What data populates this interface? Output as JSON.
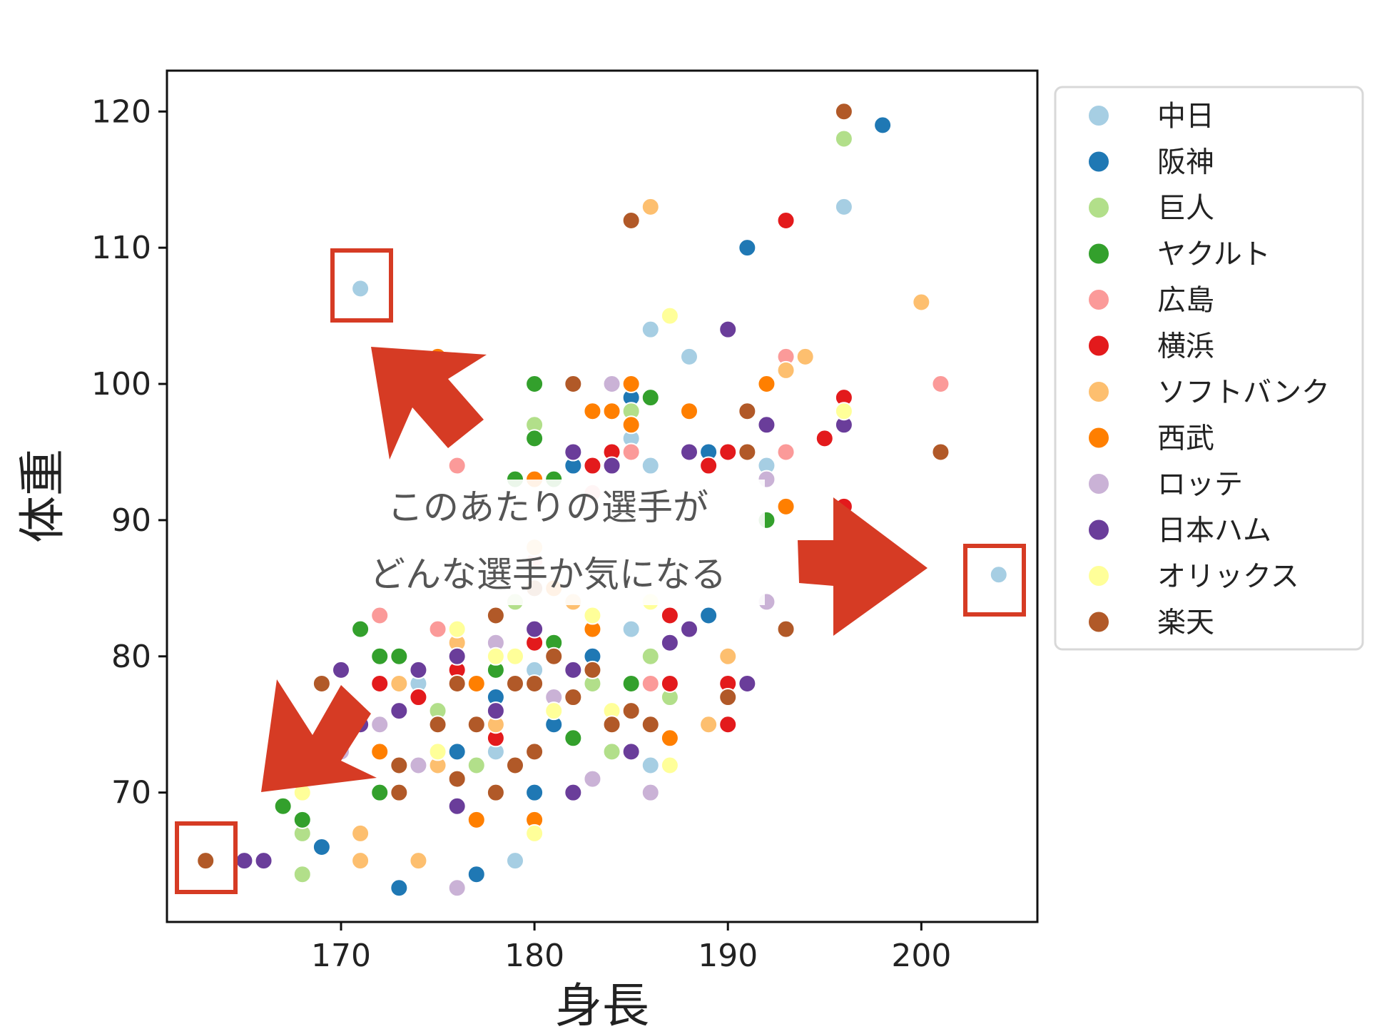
{
  "chart_data": {
    "type": "scatter",
    "xlabel": "身長",
    "ylabel": "体重",
    "xlim": [
      161,
      206
    ],
    "ylim": [
      60.5,
      123
    ],
    "xticks": [
      170,
      180,
      190,
      200
    ],
    "yticks": [
      70,
      80,
      90,
      100,
      110,
      120
    ],
    "grid": false,
    "legend_position": "outside-right",
    "series": [
      {
        "name": "中日",
        "color": "#a6cee3",
        "points": [
          [
            171,
            107
          ],
          [
            196,
            113
          ],
          [
            186,
            104
          ],
          [
            188,
            102
          ],
          [
            204,
            86
          ],
          [
            179,
            65
          ],
          [
            185,
            96
          ],
          [
            186,
            94
          ],
          [
            192,
            94
          ],
          [
            182,
            70
          ],
          [
            186,
            72
          ],
          [
            178,
            73
          ],
          [
            174,
            78
          ],
          [
            185,
            82
          ],
          [
            180,
            79
          ]
        ]
      },
      {
        "name": "阪神",
        "color": "#1f78b4",
        "points": [
          [
            198,
            119
          ],
          [
            191,
            110
          ],
          [
            189,
            95
          ],
          [
            189,
            83
          ],
          [
            169,
            66
          ],
          [
            173,
            63
          ],
          [
            177,
            64
          ],
          [
            180,
            70
          ],
          [
            182,
            94
          ],
          [
            185,
            99
          ],
          [
            176,
            73
          ],
          [
            183,
            80
          ],
          [
            178,
            77
          ],
          [
            181,
            75
          ]
        ]
      },
      {
        "name": "巨人",
        "color": "#b2df8a",
        "points": [
          [
            196,
            118
          ],
          [
            185,
            98
          ],
          [
            180,
            97
          ],
          [
            168,
            67
          ],
          [
            168,
            64
          ],
          [
            184,
            73
          ],
          [
            187,
            77
          ],
          [
            186,
            80
          ],
          [
            177,
            72
          ],
          [
            179,
            84
          ],
          [
            183,
            78
          ],
          [
            175,
            76
          ]
        ]
      },
      {
        "name": "ヤクルト",
        "color": "#33a02c",
        "points": [
          [
            180,
            100
          ],
          [
            186,
            99
          ],
          [
            180,
            96
          ],
          [
            179,
            93
          ],
          [
            181,
            93
          ],
          [
            192,
            90
          ],
          [
            171,
            82
          ],
          [
            172,
            80
          ],
          [
            173,
            80
          ],
          [
            172,
            70
          ],
          [
            167,
            69
          ],
          [
            168,
            68
          ],
          [
            185,
            78
          ],
          [
            182,
            74
          ],
          [
            178,
            79
          ],
          [
            174,
            77
          ],
          [
            181,
            81
          ]
        ]
      },
      {
        "name": "広島",
        "color": "#fb9a99",
        "points": [
          [
            201,
            100
          ],
          [
            193,
            102
          ],
          [
            193,
            95
          ],
          [
            176,
            94
          ],
          [
            182,
            95
          ],
          [
            172,
            83
          ],
          [
            186,
            78
          ],
          [
            185,
            95
          ],
          [
            183,
            92
          ],
          [
            178,
            76
          ],
          [
            175,
            82
          ],
          [
            180,
            87
          ]
        ]
      },
      {
        "name": "横浜",
        "color": "#e31a1c",
        "points": [
          [
            193,
            112
          ],
          [
            196,
            99
          ],
          [
            196,
            91
          ],
          [
            195,
            96
          ],
          [
            190,
            95
          ],
          [
            189,
            94
          ],
          [
            191,
            78
          ],
          [
            190,
            78
          ],
          [
            190,
            75
          ],
          [
            187,
            78
          ],
          [
            184,
            95
          ],
          [
            183,
            94
          ],
          [
            172,
            78
          ],
          [
            174,
            77
          ],
          [
            176,
            79
          ],
          [
            180,
            81
          ],
          [
            178,
            74
          ],
          [
            187,
            83
          ]
        ]
      },
      {
        "name": "ソフトバンク",
        "color": "#fdbf6f",
        "points": [
          [
            186,
            113
          ],
          [
            200,
            106
          ],
          [
            194,
            102
          ],
          [
            193,
            101
          ],
          [
            189,
            75
          ],
          [
            187,
            72
          ],
          [
            190,
            80
          ],
          [
            171,
            67
          ],
          [
            171,
            65
          ],
          [
            174,
            65
          ],
          [
            180,
            88
          ],
          [
            178,
            75
          ],
          [
            176,
            81
          ],
          [
            182,
            84
          ],
          [
            175,
            72
          ],
          [
            173,
            78
          ]
        ]
      },
      {
        "name": "西武",
        "color": "#ff7f00",
        "points": [
          [
            175,
            102
          ],
          [
            185,
            100
          ],
          [
            184,
            98
          ],
          [
            183,
            98
          ],
          [
            185,
            97
          ],
          [
            188,
            98
          ],
          [
            192,
            100
          ],
          [
            193,
            91
          ],
          [
            180,
            93
          ],
          [
            187,
            74
          ],
          [
            177,
            68
          ],
          [
            180,
            68
          ],
          [
            172,
            73
          ],
          [
            183,
            82
          ],
          [
            177,
            78
          ],
          [
            181,
            85
          ]
        ]
      },
      {
        "name": "ロッテ",
        "color": "#cab2d6",
        "points": [
          [
            184,
            100
          ],
          [
            192,
            93
          ],
          [
            192,
            84
          ],
          [
            170,
            73
          ],
          [
            172,
            75
          ],
          [
            176,
            63
          ],
          [
            183,
            71
          ],
          [
            186,
            70
          ],
          [
            178,
            81
          ],
          [
            174,
            72
          ],
          [
            181,
            77
          ]
        ]
      },
      {
        "name": "日本ハム",
        "color": "#6a3d9a",
        "points": [
          [
            190,
            104
          ],
          [
            192,
            97
          ],
          [
            196,
            97
          ],
          [
            184,
            94
          ],
          [
            188,
            95
          ],
          [
            182,
            95
          ],
          [
            191,
            78
          ],
          [
            188,
            82
          ],
          [
            187,
            81
          ],
          [
            170,
            79
          ],
          [
            171,
            75
          ],
          [
            165,
            65
          ],
          [
            166,
            65
          ],
          [
            176,
            69
          ],
          [
            182,
            70
          ],
          [
            185,
            73
          ],
          [
            176,
            80
          ],
          [
            178,
            76
          ],
          [
            180,
            82
          ],
          [
            182,
            79
          ],
          [
            174,
            79
          ],
          [
            173,
            76
          ]
        ]
      },
      {
        "name": "オリックス",
        "color": "#ffff99",
        "points": [
          [
            187,
            105
          ],
          [
            196,
            98
          ],
          [
            180,
            67
          ],
          [
            187,
            72
          ],
          [
            186,
            84
          ],
          [
            183,
            83
          ],
          [
            176,
            82
          ],
          [
            178,
            80
          ],
          [
            181,
            76
          ],
          [
            175,
            73
          ],
          [
            179,
            80
          ],
          [
            184,
            76
          ],
          [
            168,
            70
          ]
        ]
      },
      {
        "name": "楽天",
        "color": "#b15928",
        "points": [
          [
            196,
            120
          ],
          [
            185,
            112
          ],
          [
            182,
            100
          ],
          [
            191,
            98
          ],
          [
            191,
            95
          ],
          [
            201,
            95
          ],
          [
            193,
            82
          ],
          [
            190,
            77
          ],
          [
            186,
            75
          ],
          [
            185,
            76
          ],
          [
            163,
            65
          ],
          [
            169,
            78
          ],
          [
            173,
            72
          ],
          [
            173,
            70
          ],
          [
            176,
            71
          ],
          [
            178,
            70
          ],
          [
            179,
            72
          ],
          [
            180,
            73
          ],
          [
            184,
            75
          ],
          [
            180,
            78
          ],
          [
            177,
            75
          ],
          [
            179,
            78
          ],
          [
            181,
            80
          ],
          [
            178,
            83
          ],
          [
            183,
            79
          ],
          [
            176,
            78
          ],
          [
            175,
            75
          ],
          [
            182,
            77
          ],
          [
            180,
            85
          ]
        ]
      }
    ]
  },
  "annotations": {
    "text_line1": "このあたりの選手が",
    "text_line2": "どんな選手か気になる"
  }
}
